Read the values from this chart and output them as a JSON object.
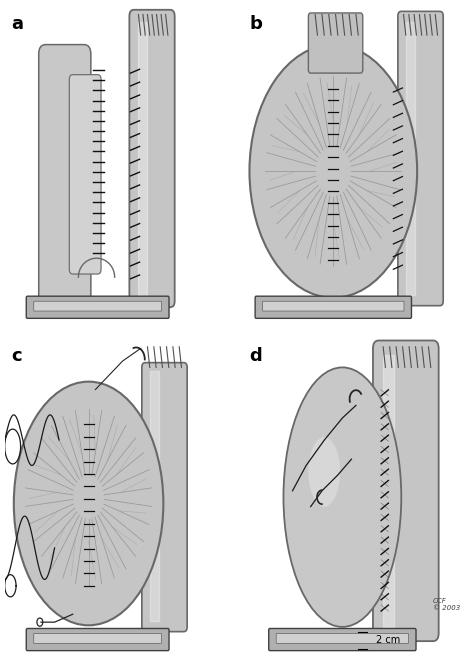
{
  "background_color": "#ffffff",
  "panel_labels": [
    "a",
    "b",
    "c",
    "d"
  ],
  "gray_light": "#c8c8c8",
  "gray_mid": "#a0a0a0",
  "gray_dark": "#707070",
  "gray_darker": "#505050",
  "gray_tube": "#b8b8b8",
  "gray_tube_dark": "#888888",
  "line_color": "#202020",
  "stitch_color": "#101010",
  "copyright_text": "CCF\n© 2003",
  "scale_text": "2 cm"
}
